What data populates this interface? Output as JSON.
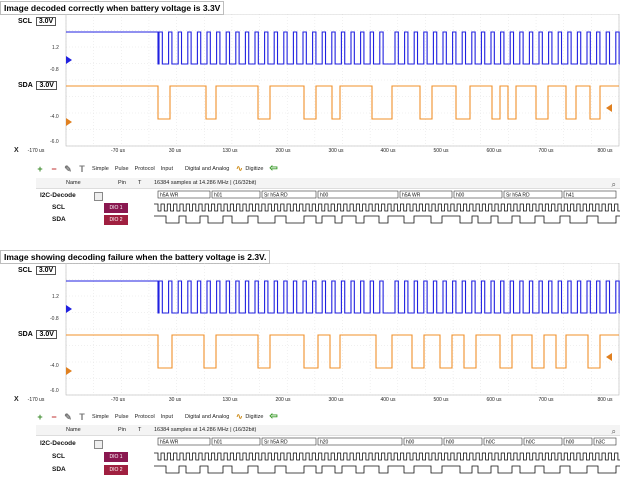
{
  "captions": {
    "top": "Image decoded correctly when battery voltage is 3.3V",
    "bottom": "Image showing decoding failure when the battery voltage is 2.3V."
  },
  "colors": {
    "scl_wave": "#2020e0",
    "sda_wave": "#f0902a",
    "pin_scl": "#8a1850",
    "pin_sda": "#a02040",
    "grid": "#d8d8d8"
  },
  "panels": [
    {
      "id": "top",
      "scl_label": "SCL",
      "scl_level": "3.0V",
      "sda_label": "SDA",
      "sda_level": "3.0V",
      "y_ticks": [
        "1.2",
        "-0.8",
        "-4.0",
        "-6.0"
      ],
      "x_icon": "X",
      "x_ticks": [
        "-170 us",
        "-70 us",
        "30 us",
        "130 us",
        "200 us",
        "300 us",
        "400 us",
        "500 us",
        "600 us",
        "700 us",
        "800 us"
      ],
      "toolbar": {
        "simple": "Simple",
        "pulse": "Pulse",
        "protocol": "Protocol",
        "input": "Input",
        "mode": "Digital and Analog",
        "digitize": "Digitize"
      },
      "table_header": {
        "name": "Name",
        "pin": "Pin",
        "t": "T",
        "info": "16384 samples at 14.286 MHz | (16/32bit)"
      },
      "rows": [
        {
          "name": "I2C-Decode",
          "pin": ""
        },
        {
          "name": "SCL",
          "pin": "DIO 1"
        },
        {
          "name": "SDA",
          "pin": "DIO 2"
        }
      ],
      "decode_labels": [
        "h5A WR",
        "h01",
        "Sr h5A RD",
        "h00",
        "h5A WR",
        "h00",
        "Sr h5A RD",
        "h41"
      ]
    },
    {
      "id": "bottom",
      "scl_label": "SCL",
      "scl_level": "3.0V",
      "sda_label": "SDA",
      "sda_level": "3.0V",
      "y_ticks": [
        "1.2",
        "-0.8",
        "-4.0",
        "-6.0"
      ],
      "x_icon": "X",
      "x_ticks": [
        "-170 us",
        "-70 us",
        "30 us",
        "130 us",
        "200 us",
        "300 us",
        "400 us",
        "500 us",
        "600 us",
        "700 us",
        "800 us"
      ],
      "toolbar": {
        "simple": "Simple",
        "pulse": "Pulse",
        "protocol": "Protocol",
        "input": "Input",
        "mode": "Digital and Analog",
        "digitize": "Digitize"
      },
      "table_header": {
        "name": "Name",
        "pin": "Pin",
        "t": "T",
        "info": "16384 samples at 14.286 MHz | (16/32bit)"
      },
      "rows": [
        {
          "name": "I2C-Decode",
          "pin": ""
        },
        {
          "name": "SCL",
          "pin": "DIO 1"
        },
        {
          "name": "SDA",
          "pin": "DIO 2"
        }
      ],
      "decode_labels": [
        "h5A WR",
        "h01",
        "Sr h5A RD",
        "h20",
        "h00",
        "h00",
        "h0C",
        "h0C",
        "h00",
        "h3C"
      ]
    }
  ]
}
